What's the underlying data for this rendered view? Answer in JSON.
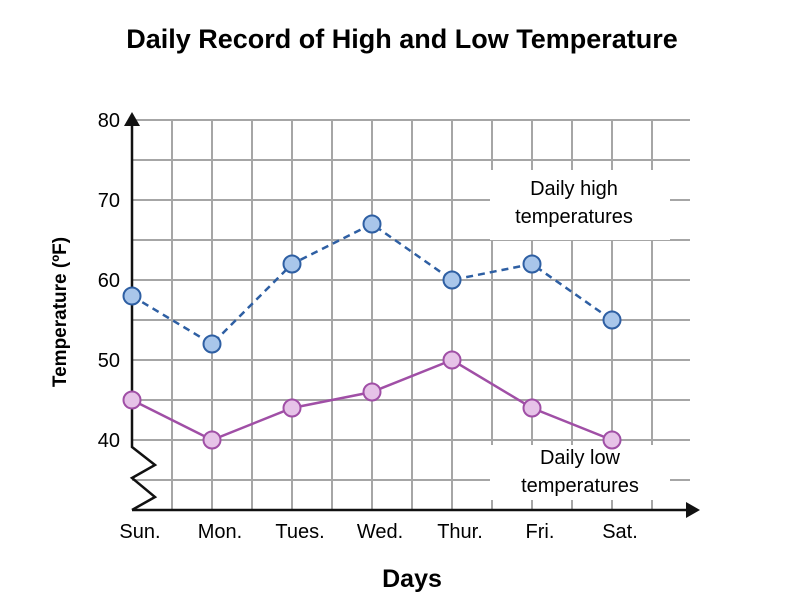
{
  "chart_data": {
    "type": "line",
    "title": "Daily Record of High and Low Temperature",
    "xlabel": "Days",
    "ylabel": "Temperature (ºF)",
    "categories": [
      "Sun.",
      "Mon.",
      "Tues.",
      "Wed.",
      "Thur.",
      "Fri.",
      "Sat."
    ],
    "y_ticks": [
      40,
      50,
      60,
      70,
      80
    ],
    "ylim": [
      32,
      80
    ],
    "axis_break": true,
    "grid": true,
    "series": [
      {
        "name_lines": [
          "Daily high",
          "temperatures"
        ],
        "values": [
          58,
          52,
          62,
          67,
          60,
          62,
          55
        ],
        "line_style": "dashed",
        "line_color": "#2e5fa3",
        "marker_fill": "#a9c6ea",
        "marker_stroke": "#2e5fa3"
      },
      {
        "name_lines": [
          "Daily low",
          "temperatures"
        ],
        "values": [
          45,
          40,
          44,
          46,
          50,
          44,
          40
        ],
        "line_style": "solid",
        "line_color": "#a04fa6",
        "marker_fill": "#e6c3e8",
        "marker_stroke": "#a04fa6"
      }
    ],
    "colors": {
      "grid": "#a6a6a6",
      "axis": "#111111"
    }
  }
}
